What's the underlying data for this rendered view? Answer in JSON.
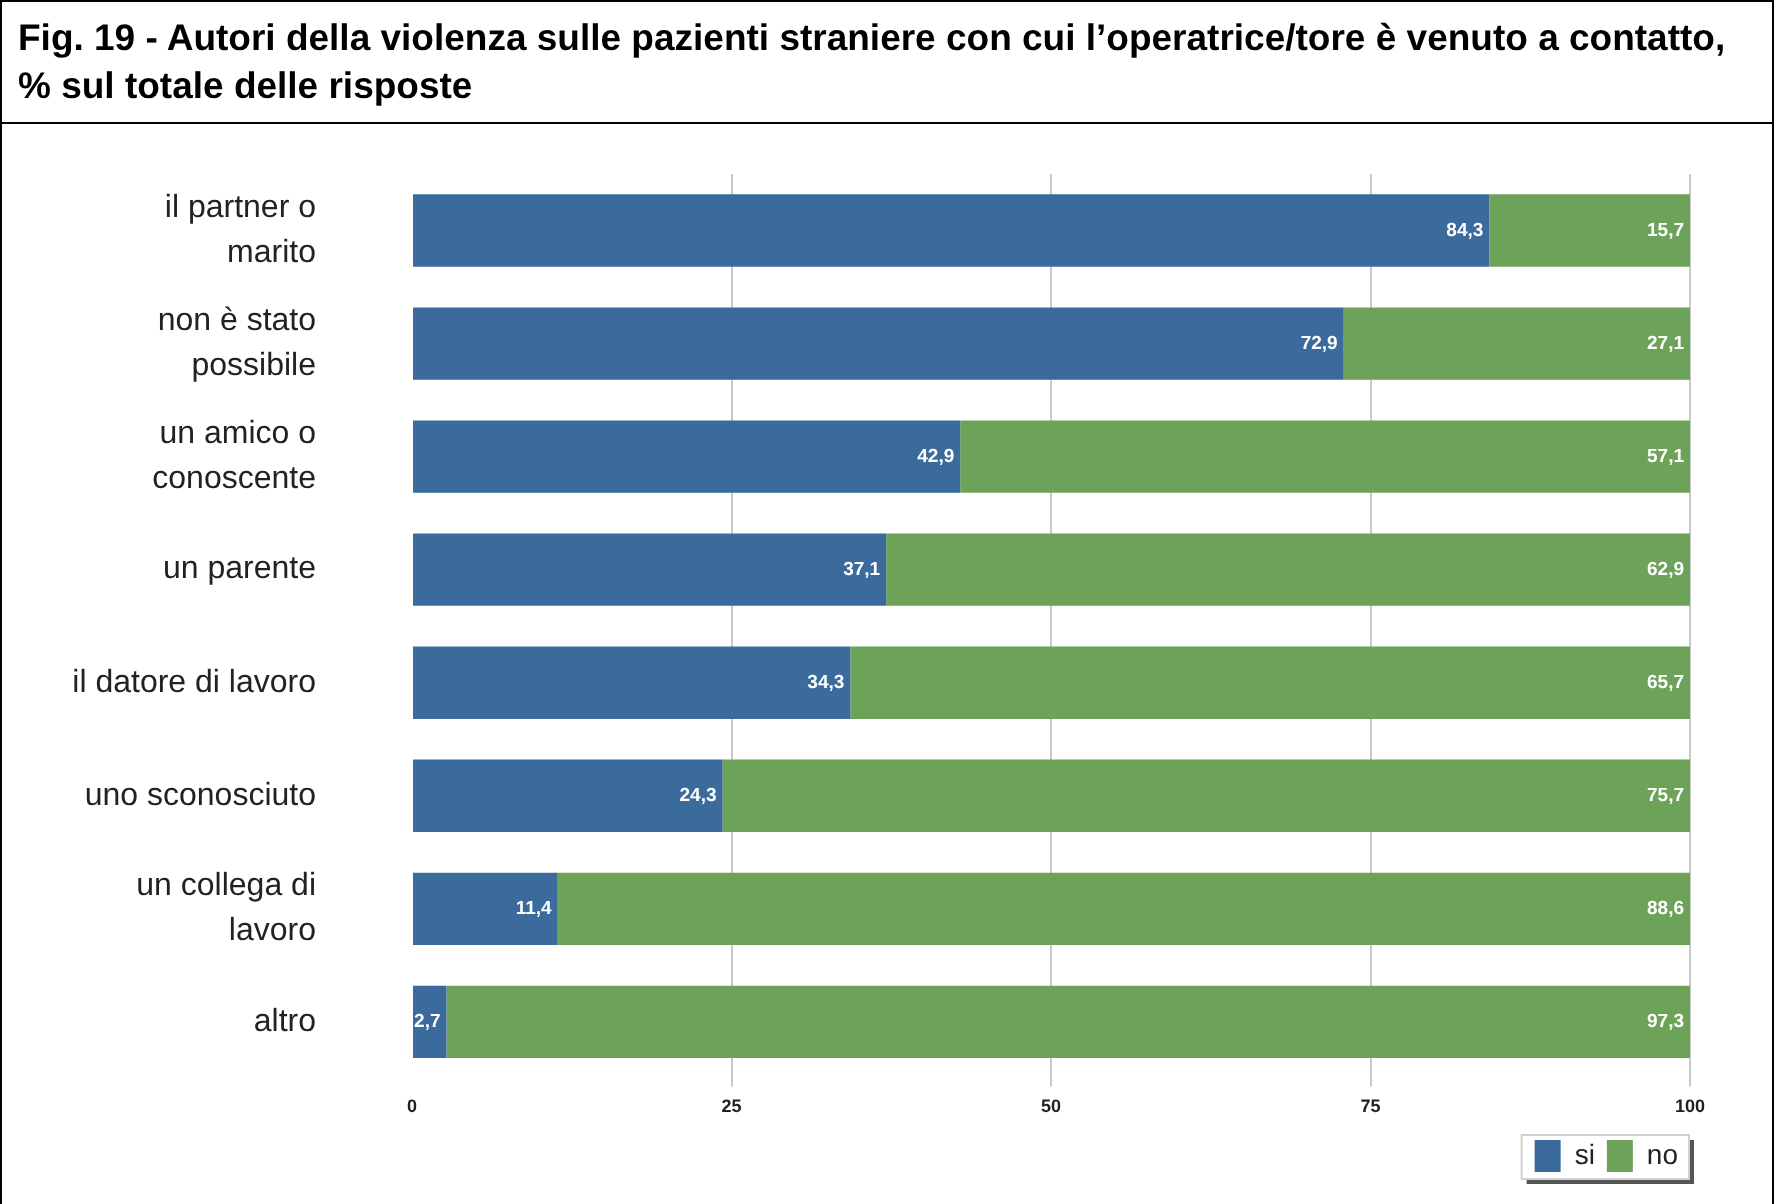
{
  "chart_data": {
    "type": "bar",
    "orientation": "horizontal",
    "stacked": true,
    "title": "Fig. 19 - Autori della violenza sulle pazienti straniere con cui l’operatrice/tore è venuto a contatto, % sul totale delle risposte",
    "categories": [
      "il partner o marito",
      "non è stato possibile",
      "un amico o conoscente",
      "un parente",
      "il datore di lavoro",
      "uno sconosciuto",
      "un collega di lavoro",
      "altro"
    ],
    "series": [
      {
        "name": "si",
        "color": "#3a6b9c",
        "values": [
          84.3,
          72.9,
          42.9,
          37.1,
          34.3,
          24.3,
          11.4,
          2.7
        ],
        "value_labels": [
          "84,3",
          "72,9",
          "42,9",
          "37,1",
          "34,3",
          "24,3",
          "11,4",
          "2,7"
        ]
      },
      {
        "name": "no",
        "color": "#6ca358",
        "values": [
          15.7,
          27.1,
          57.1,
          62.9,
          65.7,
          75.7,
          88.6,
          97.3
        ],
        "value_labels": [
          "15,7",
          "27,1",
          "57,1",
          "62,9",
          "65,7",
          "75,7",
          "88,6",
          "97,3"
        ]
      }
    ],
    "xlim": [
      0,
      100
    ],
    "xticks": [
      0,
      25,
      50,
      75,
      100
    ],
    "grid": "x",
    "legend": "bottom right"
  }
}
